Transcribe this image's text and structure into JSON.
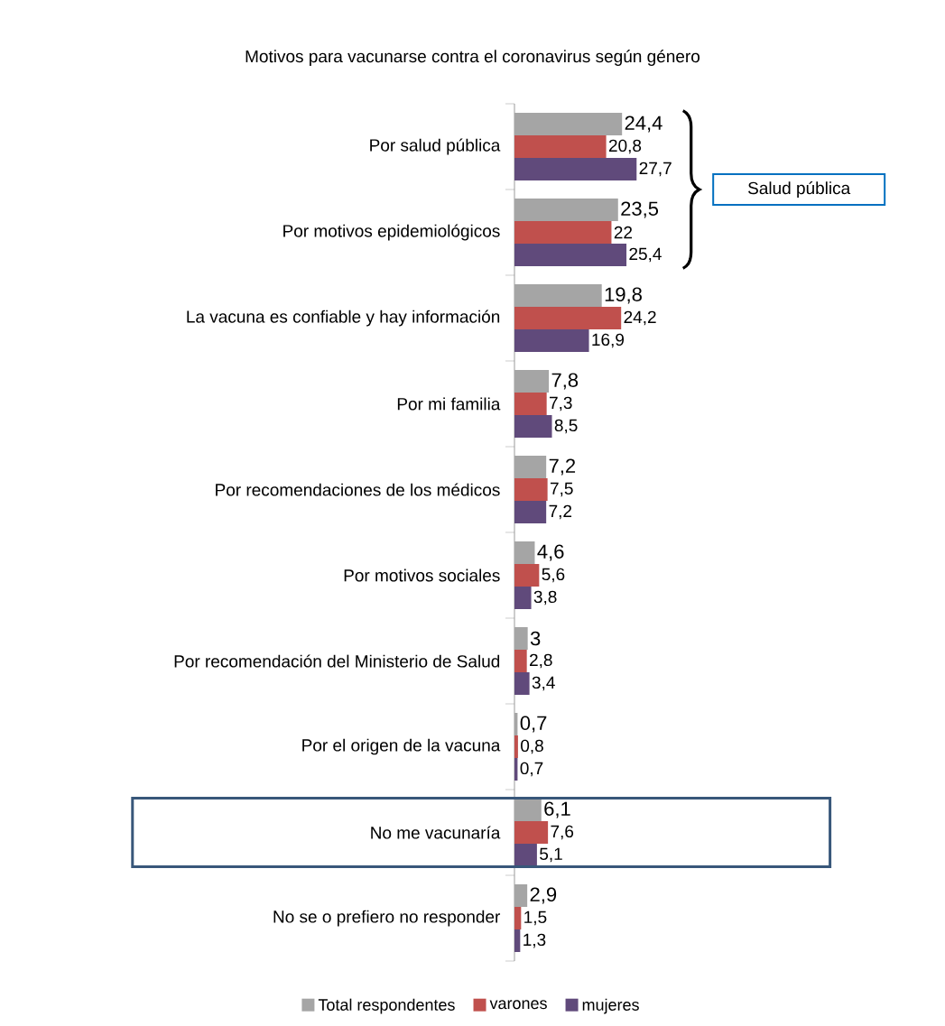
{
  "chart_data": {
    "type": "bar",
    "orientation": "horizontal",
    "title": "Motivos para vacunarse contra el coronavirus según género",
    "categories": [
      "Por salud pública",
      "Por motivos epidemiológicos",
      "La vacuna es confiable y hay información",
      "Por mi familia",
      "Por recomendaciones de los médicos",
      "Por motivos sociales",
      "Por recomendación del Ministerio de Salud",
      "Por el origen de la vacuna",
      "No me vacunaría",
      "No se o prefiero no responder"
    ],
    "series": [
      {
        "name": "Total respondentes",
        "color": "#a5a5a5",
        "values": [
          24.4,
          23.5,
          19.8,
          7.8,
          7.2,
          4.6,
          3,
          0.7,
          6.1,
          2.9
        ],
        "value_labels": [
          "24,4",
          "23,5",
          "19,8",
          "7,8",
          "7,2",
          "4,6",
          "3",
          "0,7",
          "6,1",
          "2,9"
        ]
      },
      {
        "name": "varones",
        "color": "#c0504d",
        "values": [
          20.8,
          22,
          24.2,
          7.3,
          7.5,
          5.6,
          2.8,
          0.8,
          7.6,
          1.5
        ],
        "value_labels": [
          "20,8",
          "22",
          "24,2",
          "7,3",
          "7,5",
          "5,6",
          "2,8",
          "0,8",
          "7,6",
          "1,5"
        ]
      },
      {
        "name": "mujeres",
        "color": "#604a7b",
        "values": [
          27.7,
          25.4,
          16.9,
          8.5,
          7.2,
          3.8,
          3.4,
          0.7,
          5.1,
          1.3
        ],
        "value_labels": [
          "27,7",
          "25,4",
          "16,9",
          "8,5",
          "7,2",
          "3,8",
          "3,4",
          "0,7",
          "5,1",
          "1,3"
        ]
      }
    ],
    "legend": "bottom",
    "annotations": [
      "Salud pública"
    ]
  }
}
